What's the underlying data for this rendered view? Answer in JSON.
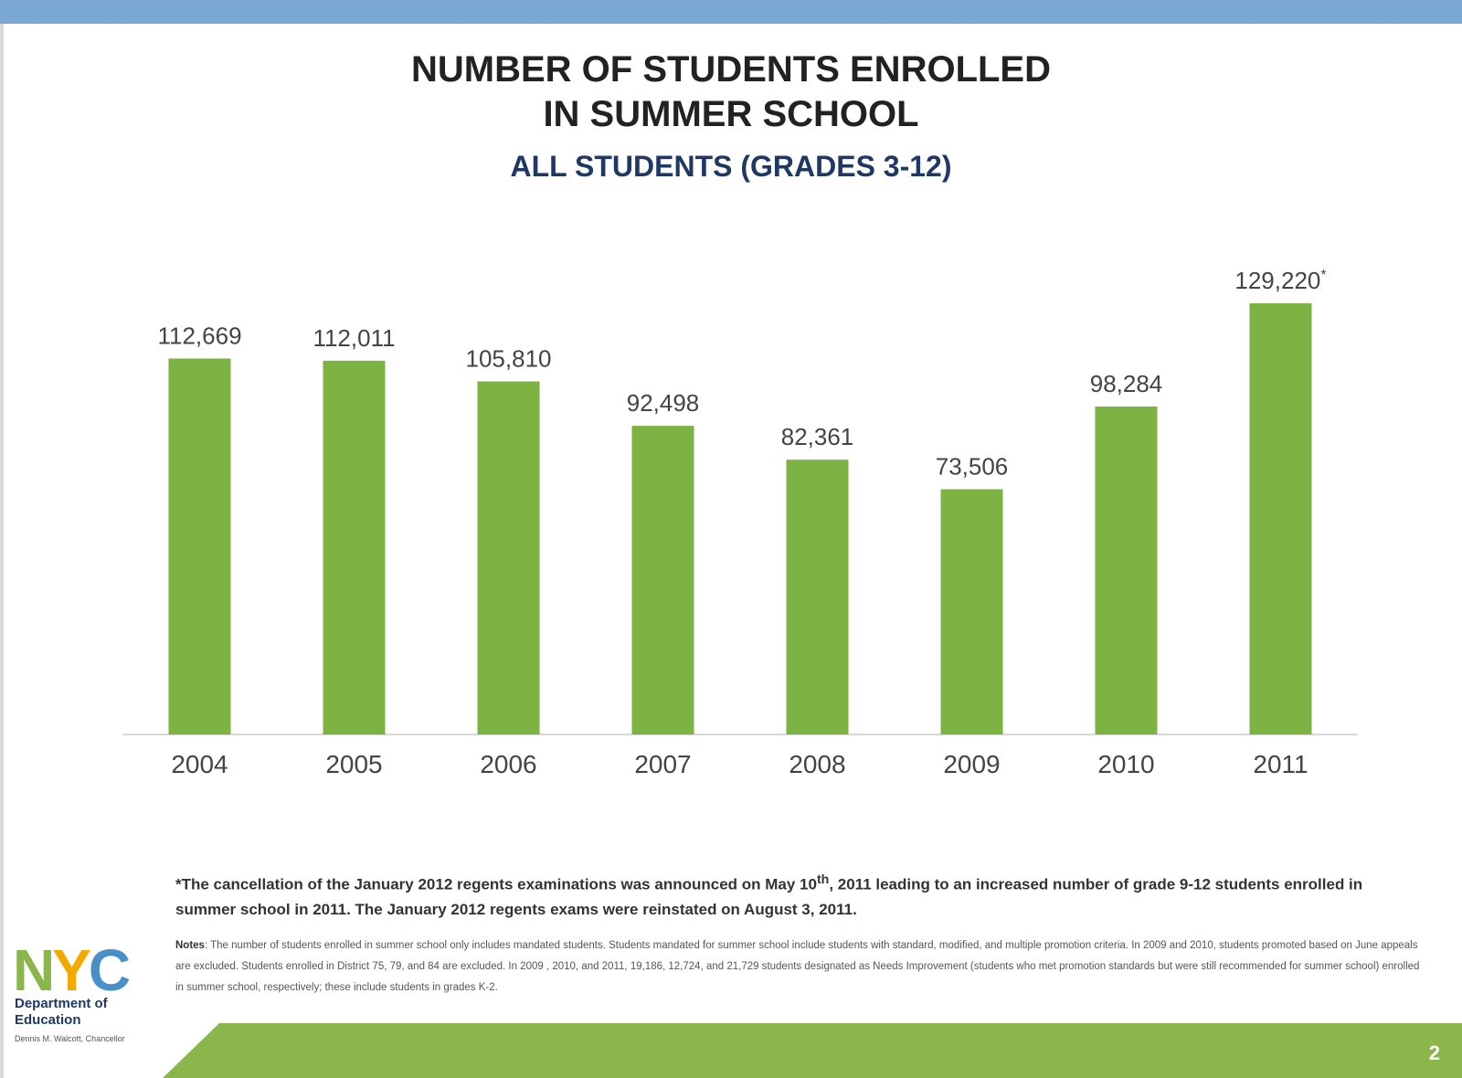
{
  "slide": {
    "title_line1": "NUMBER OF STUDENTS ENROLLED",
    "title_line2": "IN SUMMER SCHOOL",
    "subtitle": "ALL STUDENTS (GRADES 3-12)",
    "footnote_part1": "*The cancellation of the January 2012 regents examinations was announced  on May 10",
    "footnote_sup": "th",
    "footnote_part2": ", 2011 leading to an increased number of grade 9-12 students enrolled in summer school in 2011.  The January 2012 regents exams were reinstated on August 3, 2011.",
    "notes_label": "Notes",
    "notes_text": ": The number of students enrolled in summer school only includes mandated students. Students mandated for summer school include students with standard, modified, and multiple promotion criteria. In 2009 and 2010, students promoted based on June appeals are excluded. Students enrolled in District 75, 79, and 84 are excluded. In 2009 , 2010, and 2011, 19,186, 12,724,  and 21,729 students designated as Needs Improvement (students who met promotion standards but were still recommended for summer school) enrolled in summer school, respectively; these include students in grades K-2.",
    "page_number": "2"
  },
  "logo": {
    "mark_text": "NYC",
    "line1": "Department of",
    "line2": "Education",
    "sub": "Dennis M. Walcott, Chancellor",
    "colors": {
      "N": "#8ab64b",
      "Y": "#f2a900",
      "C": "#4a90c8"
    }
  },
  "colors": {
    "bar": "#7cb342",
    "top_band": "#7ba7d3",
    "bottom_band": "#8ab64b",
    "title": "#222222",
    "subtitle": "#1f3864",
    "axis": "#d9d9d9",
    "labels": "#444444"
  },
  "chart_data": {
    "type": "bar",
    "title": "NUMBER OF STUDENTS ENROLLED IN SUMMER SCHOOL",
    "subtitle": "ALL STUDENTS (GRADES 3-12)",
    "categories": [
      "2004",
      "2005",
      "2006",
      "2007",
      "2008",
      "2009",
      "2010",
      "2011"
    ],
    "values": [
      112669,
      112011,
      105810,
      92498,
      82361,
      73506,
      98284,
      129220
    ],
    "value_labels": [
      "112,669",
      "112,011",
      "105,810",
      "92,498",
      "82,361",
      "73,506",
      "98,284",
      "129,220"
    ],
    "label_suffixes": [
      "",
      "",
      "",
      "",
      "",
      "",
      "",
      "*"
    ],
    "ylim": [
      0,
      129220
    ],
    "xlabel": "",
    "ylabel": "",
    "grid": false,
    "legend": "none"
  }
}
